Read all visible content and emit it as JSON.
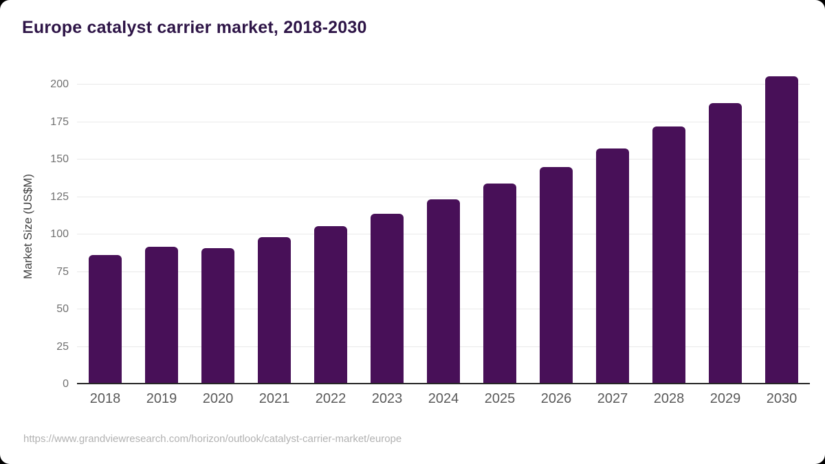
{
  "page": {
    "source_url": "https://www.grandviewresearch.com/horizon/outlook/catalyst-carrier-market/europe"
  },
  "chart_data": {
    "type": "bar",
    "title": "Europe catalyst carrier market, 2018-2030",
    "categories": [
      "2018",
      "2019",
      "2020",
      "2021",
      "2022",
      "2023",
      "2024",
      "2025",
      "2026",
      "2027",
      "2028",
      "2029",
      "2030"
    ],
    "values": [
      86.4,
      91.7,
      90.9,
      98.3,
      105.6,
      113.9,
      123.4,
      133.8,
      145.1,
      157.5,
      171.9,
      187.6,
      205.3
    ],
    "series_name": "Market Size (US$M)",
    "xlabel": "",
    "ylabel": "Market Size (US$M)",
    "ylim": [
      0,
      200
    ],
    "yticks": [
      0,
      25,
      50,
      75,
      100,
      125,
      150,
      175,
      200
    ],
    "grid": true,
    "legend_position": "none"
  },
  "colors": {
    "bar": "#481058",
    "title": "#2e1547",
    "gridline": "#e9e9e9",
    "axis_line": "#262626",
    "y_tick_label": "#707070",
    "x_tick_label": "#595959",
    "footer_text": "#b1b1b1",
    "card_background": "#ffffff",
    "frame_background": "#000000"
  }
}
